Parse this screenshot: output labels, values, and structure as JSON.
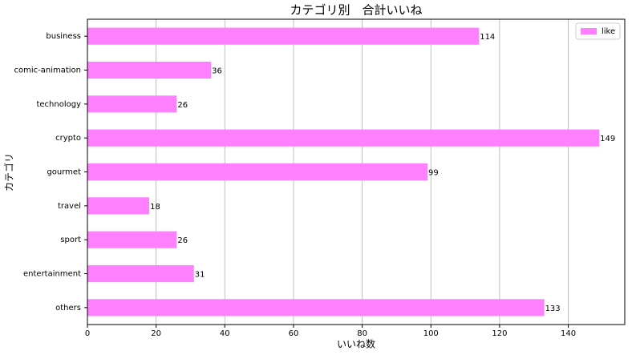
{
  "chart_data": {
    "type": "barh",
    "title": "カテゴリ別　合計いいね",
    "x_label": "いいね数",
    "y_label": "カテゴリ",
    "categories": [
      "business",
      "comic-animation",
      "technology",
      "crypto",
      "gourmet",
      "travel",
      "sport",
      "entertainment",
      "others"
    ],
    "series": [
      {
        "name": "like",
        "color": "#ff80ff",
        "values": [
          114,
          36,
          26,
          149,
          99,
          18,
          26,
          31,
          133
        ]
      }
    ],
    "xlim": [
      0,
      156.45
    ],
    "xticks": [
      0,
      20,
      40,
      60,
      80,
      100,
      120,
      140
    ],
    "grid": true,
    "legend": "upper right",
    "data_labels": true
  }
}
